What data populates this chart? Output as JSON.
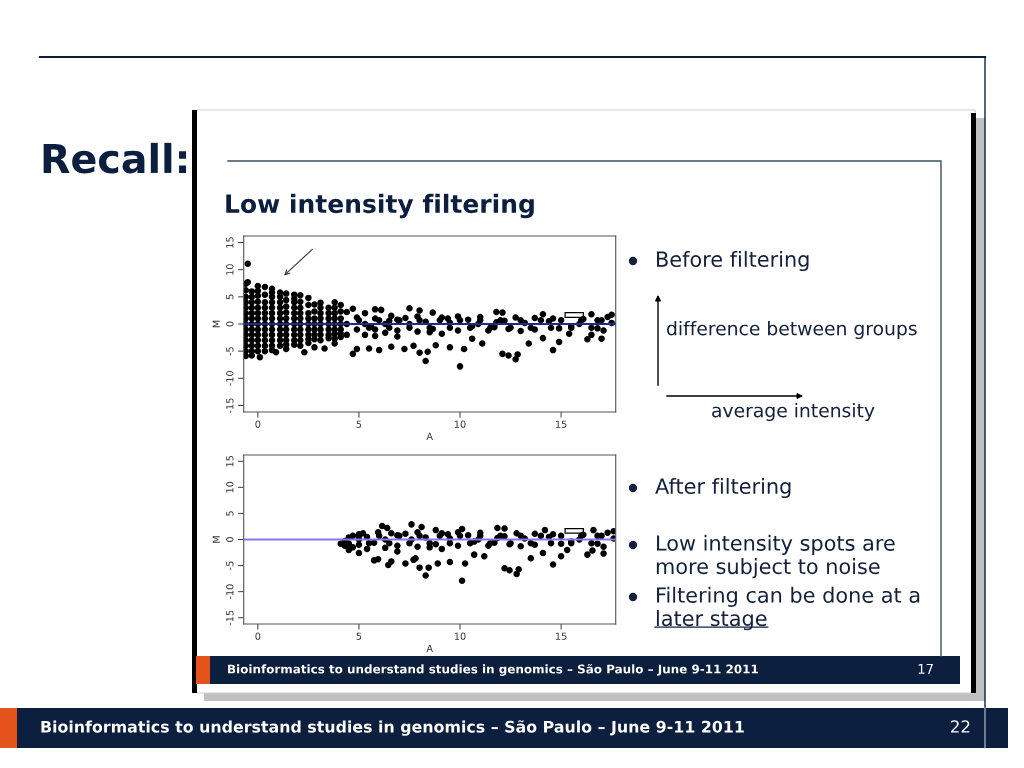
{
  "chart_data": [
    {
      "type": "other",
      "title": "Recall:",
      "annotations": [
        "Bioinformatics to understand studies in genomics – São Paulo – June 9-11 2011",
        "22"
      ]
    },
    {
      "type": "scatter",
      "title": "Low intensity filtering",
      "xlabel": "A",
      "ylabel": "M",
      "xlim": [
        -0.7,
        17.7
      ],
      "ylim": [
        -16.2,
        16.2
      ],
      "xticks": [
        0,
        5,
        10,
        15
      ],
      "yticks": [
        -15,
        -10,
        -5,
        0,
        5,
        10,
        15
      ],
      "marker": "circle",
      "ref_lines": [
        {
          "axis": "y",
          "value": 0,
          "color": "#1c2b8f"
        }
      ],
      "series": [
        {
          "color": "#000000",
          "x": [
            -0.6,
            -0.6,
            -0.6,
            -0.6,
            -0.6,
            -0.6,
            -0.6,
            -0.6,
            -0.5,
            -0.5,
            -0.3,
            -0.3,
            -0.3,
            -0.3,
            -0.3,
            -0.3,
            -0.3,
            0.0,
            0.0,
            0.0,
            0.0,
            0.0,
            0.0,
            0.0,
            0.1,
            0.35,
            0.35,
            0.35,
            0.35,
            0.35,
            0.35,
            0.7,
            0.7,
            0.7,
            0.7,
            0.7,
            0.7,
            0.7,
            0.9,
            1.1,
            1.1,
            1.1,
            1.1,
            1.1,
            1.1,
            1.4,
            1.4,
            1.4,
            1.4,
            1.4,
            1.4,
            1.8,
            1.8,
            1.8,
            1.8,
            1.8,
            1.8,
            2.1,
            2.1,
            2.1,
            2.1,
            2.1,
            2.3,
            2.5,
            2.5,
            2.5,
            2.5,
            2.5,
            2.8,
            2.8,
            2.8,
            2.8,
            2.8,
            3.1,
            3.1,
            3.1,
            3.1,
            3.3,
            3.5,
            3.5,
            3.5,
            3.5,
            3.8,
            3.8,
            3.8,
            3.8,
            3.8,
            4.1,
            4.1,
            4.1,
            4.1,
            4.4,
            4.4,
            4.4,
            4.7,
            4.7,
            4.9,
            4.9,
            4.9,
            5.3,
            5.3,
            5.3,
            5.5,
            5.8,
            5.8,
            5.8,
            5.8,
            6.0,
            6.1,
            6.3,
            6.3,
            6.6,
            6.6,
            6.9,
            6.9,
            6.9,
            7.25,
            7.5,
            7.5,
            7.7,
            7.9,
            7.9,
            8.0,
            8.0,
            8.3,
            8.3,
            8.4,
            8.65,
            8.65,
            8.8,
            9.1,
            9.1,
            9.5,
            9.5,
            9.9,
            9.9,
            10.0,
            10.2,
            10.4,
            10.6,
            10.6,
            11.0,
            11.1,
            11.4,
            11.8,
            11.8,
            12.1,
            12.1,
            12.4,
            12.4,
            12.75,
            12.75,
            12.85,
            13.2,
            13.4,
            13.7,
            13.7,
            14.1,
            14.1,
            14.4,
            14.6,
            14.9,
            14.9,
            15.4,
            15.9,
            16.3,
            16.5,
            16.5,
            16.8,
            16.8,
            17.0,
            17.1,
            17.3,
            17.5,
            17.5,
            5.6,
            6.5,
            7.3,
            8.5,
            9.4,
            10.9,
            11.7,
            12.2,
            13.0,
            14.6,
            15.5,
            16.1,
            -0.6,
            -0.6,
            -0.6,
            -0.6,
            -0.6,
            -0.6,
            -0.3,
            -0.3,
            -0.3,
            -0.3,
            -0.3,
            -0.3,
            0.0,
            0.0,
            0.0,
            0.0,
            0.0,
            0.0,
            0.35,
            0.35,
            0.35,
            0.35,
            0.35,
            0.35,
            0.7,
            0.7,
            0.7,
            0.7,
            0.7,
            0.7,
            1.1,
            1.1,
            1.1,
            1.1,
            1.1,
            1.4,
            1.4,
            1.4,
            1.4,
            1.4,
            1.8,
            1.8,
            1.8,
            1.8,
            1.8,
            2.1,
            2.1,
            2.1,
            2.1,
            2.1,
            2.5,
            2.5,
            2.5,
            2.5,
            2.8,
            2.8,
            2.8,
            3.1,
            3.1,
            3.1,
            3.1,
            3.5,
            3.5,
            3.5,
            3.8,
            3.8,
            3.8,
            3.8,
            4.1,
            4.1,
            4.1,
            5.0,
            5.5,
            6.0,
            6.5,
            7.0,
            7.5,
            8.0,
            8.5,
            9.0,
            9.5,
            10.0,
            10.5,
            11.0,
            11.5,
            12.0,
            12.5,
            13.0,
            13.5,
            14.0,
            14.5,
            15.0,
            15.5,
            16.0,
            16.5,
            17.0
          ],
          "values": [
            7.4,
            5.0,
            3.0,
            1.0,
            -1.0,
            -3.0,
            -5.0,
            -5.9,
            11.1,
            7.7,
            6.0,
            4.0,
            2.0,
            0.0,
            -2.0,
            -4.0,
            -5.8,
            7.0,
            5.2,
            3.0,
            1.0,
            -1.0,
            -3.0,
            -5.0,
            -6.1,
            6.8,
            4.0,
            2.0,
            0.0,
            -2.0,
            -4.0,
            6.5,
            5.0,
            3.0,
            1.0,
            -1.0,
            -3.0,
            -4.8,
            -5.2,
            5.8,
            4.0,
            2.0,
            0.0,
            -2.0,
            -4.0,
            5.6,
            3.2,
            1.0,
            -1.0,
            -3.0,
            -4.6,
            5.4,
            4.0,
            2.0,
            0.0,
            -2.0,
            -3.8,
            5.3,
            3.0,
            1.0,
            -1.0,
            -3.0,
            -5.2,
            4.8,
            2.0,
            0.0,
            -2.0,
            -3.5,
            3.6,
            1.0,
            -1.0,
            -2.8,
            -4.3,
            3.9,
            2.0,
            0.0,
            -2.0,
            -4.5,
            3.0,
            1.0,
            -1.0,
            -2.6,
            4.0,
            2.0,
            0.0,
            -1.8,
            -3.6,
            3.5,
            1.0,
            -1.0,
            -2.4,
            2.2,
            0.0,
            -2.0,
            2.8,
            -5.5,
            1.2,
            -1.0,
            -4.6,
            2.0,
            0.0,
            -2.0,
            -4.5,
            2.7,
            1.0,
            -1.0,
            -2.2,
            -4.8,
            2.6,
            0.0,
            -1.6,
            1.5,
            -4.2,
            0.8,
            -1.2,
            -2.3,
            -4.6,
            2.9,
            0.0,
            -4.0,
            1.4,
            -1.4,
            2.5,
            -5.3,
            -6.8,
            0.4,
            -5.1,
            2.1,
            -0.9,
            -3.9,
            1.2,
            -1.8,
            0.2,
            -4.3,
            1.4,
            -1.2,
            -7.8,
            -4.6,
            0.8,
            -2.7,
            -0.4,
            1.3,
            -3.6,
            -1.2,
            2.2,
            0.3,
            2.1,
            -5.5,
            -5.8,
            -0.9,
            -6.5,
            1.2,
            -5.6,
            0.2,
            -3.6,
            1.1,
            -1.0,
            1.8,
            -2.6,
            0.5,
            -4.8,
            -3.3,
            -0.8,
            -1.8,
            0.0,
            -2.8,
            1.8,
            -2.0,
            0.7,
            -0.8,
            -2.7,
            -1.2,
            1.3,
            1.7,
            0.2,
            -0.5,
            0.6,
            1.1,
            -1.5,
            1.0,
            0.0,
            -0.6,
            0.6,
            -1.3,
            1.0,
            -0.4,
            0.9,
            6.2,
            4.0,
            2.0,
            0.0,
            -2.0,
            -4.0,
            5.0,
            3.0,
            1.0,
            -1.0,
            -3.0,
            -5.0,
            6.1,
            4.1,
            2.0,
            0.0,
            -2.0,
            -4.0,
            5.4,
            3.0,
            1.0,
            -1.0,
            -3.0,
            -5.0,
            5.8,
            4.0,
            2.0,
            0.0,
            -2.0,
            -4.0,
            5.0,
            3.0,
            1.0,
            -1.0,
            -3.0,
            4.4,
            2.1,
            0.0,
            -2.0,
            -3.8,
            4.7,
            3.0,
            1.0,
            -1.0,
            -3.0,
            4.1,
            2.0,
            0.0,
            -2.0,
            -4.0,
            3.5,
            1.0,
            -1.0,
            -2.8,
            2.3,
            0.0,
            -2.0,
            3.0,
            1.0,
            -1.0,
            -3.0,
            2.0,
            0.0,
            -2.0,
            3.0,
            1.0,
            -1.0,
            -2.7,
            2.3,
            0.0,
            -1.8,
            0.7,
            -0.7,
            0.7,
            -0.7,
            0.7,
            -0.7,
            0.7,
            -0.7,
            0.7,
            -0.7,
            0.7,
            -0.7,
            0.7,
            -0.7,
            0.7,
            -0.7,
            0.7,
            -0.7,
            0.7,
            -0.7,
            0.7,
            -0.7,
            0.7,
            -0.7,
            0.7
          ]
        }
      ],
      "annotations": [
        "Before filtering",
        "difference between groups",
        "average intensity"
      ]
    },
    {
      "type": "scatter",
      "xlabel": "A",
      "ylabel": "M",
      "xlim": [
        -0.7,
        17.7
      ],
      "ylim": [
        -16.2,
        16.2
      ],
      "xticks": [
        0,
        5,
        10,
        15
      ],
      "yticks": [
        -15,
        -10,
        -5,
        0,
        5,
        10,
        15
      ],
      "marker": "circle",
      "ref_lines": [
        {
          "axis": "y",
          "value": 0,
          "color": "#8878f0"
        }
      ],
      "series": [
        {
          "color": "#000000",
          "x": [
            4.1,
            4.3,
            4.3,
            4.5,
            4.5,
            4.5,
            4.7,
            4.7,
            5.0,
            5.0,
            5.0,
            5.0,
            5.2,
            5.4,
            5.4,
            5.75,
            5.75,
            5.95,
            5.95,
            6.15,
            6.3,
            6.3,
            6.4,
            6.45,
            6.6,
            6.6,
            6.9,
            6.9,
            6.9,
            7.3,
            7.3,
            7.6,
            7.6,
            7.7,
            7.8,
            7.9,
            7.9,
            8.0,
            8.1,
            8.3,
            8.3,
            8.45,
            8.5,
            8.8,
            8.8,
            8.9,
            9.1,
            9.1,
            9.4,
            9.5,
            9.5,
            9.9,
            9.9,
            10.1,
            10.1,
            10.25,
            10.4,
            10.7,
            10.7,
            10.9,
            11.0,
            11.2,
            11.4,
            11.7,
            11.85,
            11.85,
            12.2,
            12.2,
            12.2,
            12.45,
            12.45,
            12.8,
            12.8,
            12.9,
            13.0,
            13.2,
            13.5,
            13.7,
            13.7,
            14.1,
            14.2,
            14.4,
            14.6,
            14.6,
            15.0,
            15.0,
            15.3,
            15.5,
            15.9,
            16.1,
            16.3,
            16.55,
            16.6,
            16.8,
            16.8,
            17.1,
            17.1,
            17.3,
            17.6,
            17.6,
            5.0,
            5.5,
            6.0,
            6.5,
            7.0,
            7.5,
            8.0,
            8.5,
            9.0,
            9.5,
            10.0,
            10.5,
            11.0,
            11.5,
            12.0,
            12.5,
            13.0,
            13.5,
            14.0,
            14.5,
            15.0,
            15.5,
            16.0,
            16.5,
            17.0
          ],
          "values": [
            -0.8,
            -0.3,
            -1.2,
            0.4,
            -0.8,
            -2.0,
            0.7,
            -1.5,
            1.0,
            0.0,
            -1.0,
            -2.6,
            1.2,
            0.5,
            -1.8,
            -4.0,
            -0.6,
            -3.8,
            1.4,
            2.6,
            0.0,
            -1.6,
            2.2,
            -4.9,
            -4.2,
            1.2,
            0.8,
            -1.2,
            -2.3,
            -4.6,
            1.1,
            2.9,
            0.0,
            -3.9,
            -3.6,
            1.4,
            -1.4,
            -5.4,
            2.4,
            -6.9,
            0.4,
            -5.4,
            -1.5,
            1.8,
            -0.9,
            -4.6,
            1.2,
            -1.8,
            1.0,
            -4.3,
            0.2,
            1.4,
            -1.2,
            -7.9,
            2.0,
            -4.6,
            0.8,
            -2.9,
            -0.4,
            0.0,
            1.3,
            -3.2,
            -1.2,
            -0.6,
            2.2,
            0.3,
            2.1,
            -5.5,
            0.6,
            -5.9,
            -0.9,
            -6.6,
            1.2,
            -5.7,
            -1.3,
            0.2,
            -3.6,
            1.1,
            -1.0,
            -2.6,
            1.8,
            0.5,
            -4.8,
            1.0,
            -3.2,
            -0.8,
            -2.0,
            -0.4,
            0.0,
            0.9,
            -2.9,
            -2.1,
            1.8,
            0.7,
            -0.8,
            -2.7,
            -1.4,
            1.3,
            1.6,
            0.2,
            0.7,
            -0.7,
            0.7,
            -0.7,
            0.7,
            -0.7,
            0.7,
            -0.7,
            0.7,
            -0.7,
            0.7,
            -0.7,
            0.7,
            -0.7,
            0.7,
            -0.7,
            0.7,
            -0.7,
            0.7,
            -0.7,
            0.7,
            -0.7,
            0.7,
            -0.7,
            0.7
          ]
        }
      ],
      "annotations": [
        "After filtering",
        "Low intensity spots are\nmore subject to noise",
        "Filtering can be done at a\nlater stage",
        "Bioinformatics to understand studies in genomics – São Paulo – June 9-11 2011",
        "17"
      ]
    }
  ]
}
